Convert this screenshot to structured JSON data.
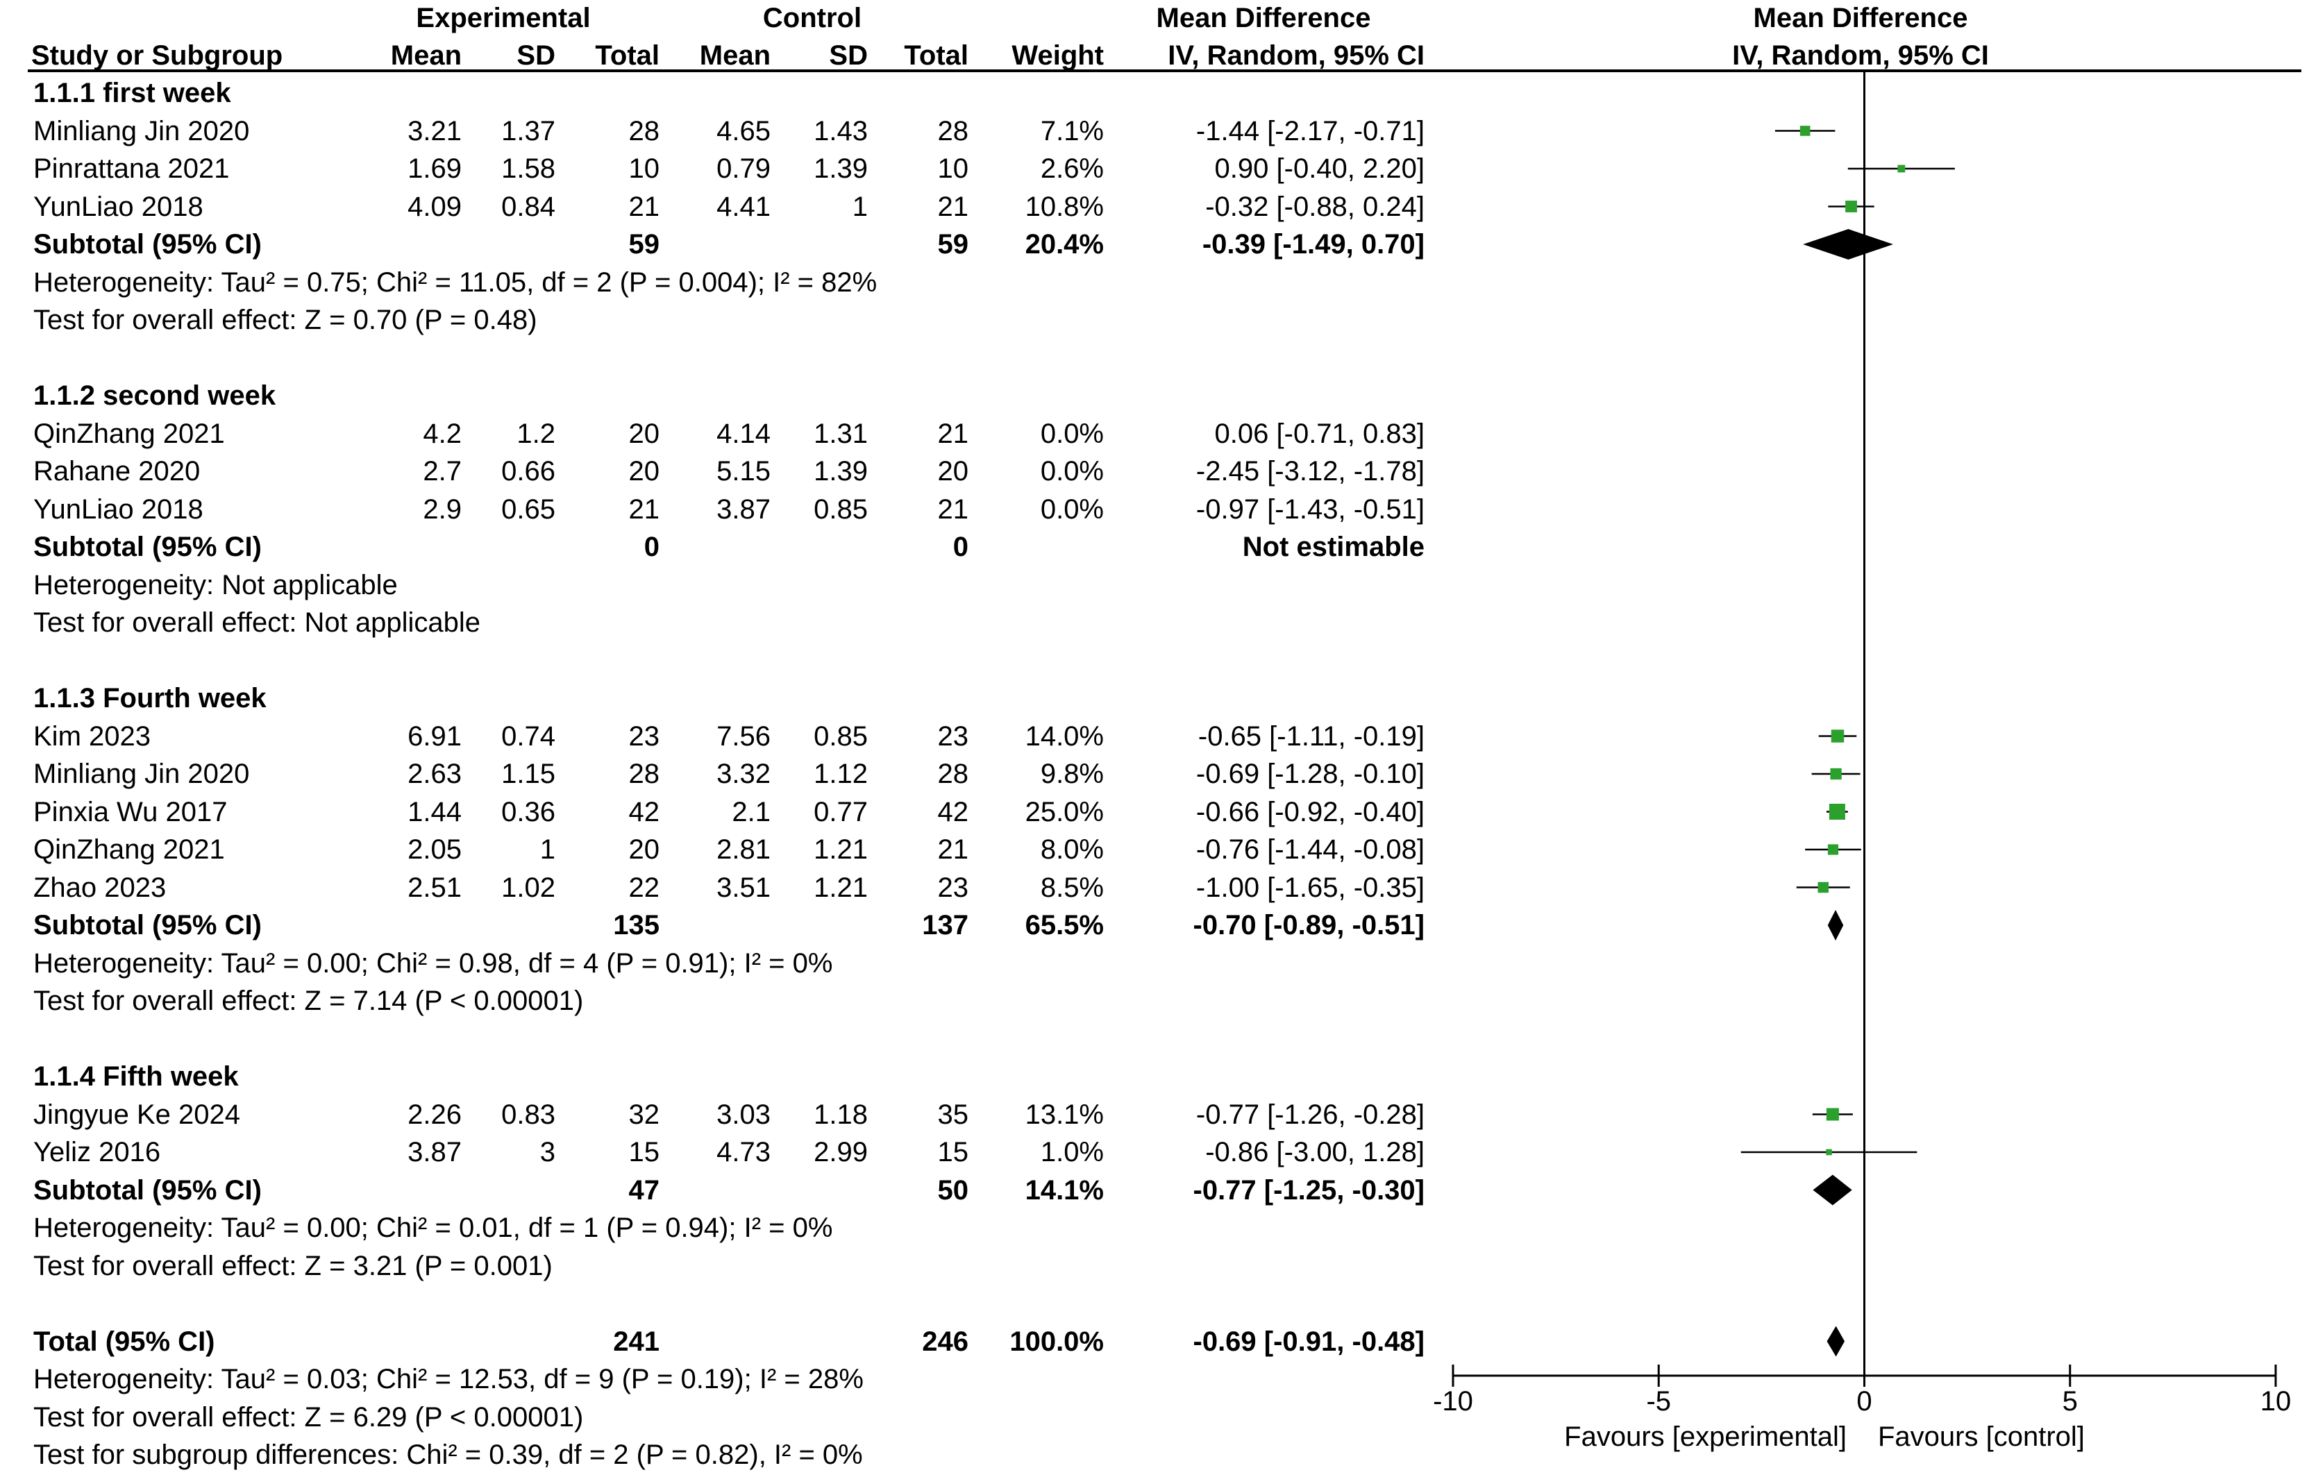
{
  "headers": {
    "experimental": "Experimental",
    "control": "Control",
    "md_table": "Mean Difference",
    "md_plot": "Mean Difference",
    "study": "Study or Subgroup",
    "exp_mean": "Mean",
    "exp_sd": "SD",
    "exp_total": "Total",
    "ctl_mean": "Mean",
    "ctl_sd": "SD",
    "ctl_total": "Total",
    "weight": "Weight",
    "md_method": "IV, Random, 95% CI",
    "plot_method": "IV, Random, 95% CI"
  },
  "rows": [
    {
      "type": "group",
      "label": "1.1.1 first week"
    },
    {
      "type": "study",
      "name": "Minliang Jin 2020",
      "em": "3.21",
      "esd": "1.37",
      "et": "28",
      "cm": "4.65",
      "csd": "1.43",
      "ct": "28",
      "w": "7.1%",
      "ci": "-1.44 [-2.17, -0.71]"
    },
    {
      "type": "study",
      "name": "Pinrattana 2021",
      "em": "1.69",
      "esd": "1.58",
      "et": "10",
      "cm": "0.79",
      "csd": "1.39",
      "ct": "10",
      "w": "2.6%",
      "ci": "0.90 [-0.40, 2.20]"
    },
    {
      "type": "study",
      "name": "YunLiao 2018",
      "em": "4.09",
      "esd": "0.84",
      "et": "21",
      "cm": "4.41",
      "csd": "1",
      "ct": "21",
      "w": "10.8%",
      "ci": "-0.32 [-0.88, 0.24]"
    },
    {
      "type": "subtotal",
      "name": "Subtotal (95% CI)",
      "et": "59",
      "ct": "59",
      "w": "20.4%",
      "ci": "-0.39 [-1.49, 0.70]"
    },
    {
      "type": "note",
      "text": "Heterogeneity: Tau² = 0.75; Chi² = 11.05, df = 2 (P = 0.004); I² = 82%"
    },
    {
      "type": "note",
      "text": "Test for overall effect: Z = 0.70 (P = 0.48)"
    },
    {
      "type": "blank"
    },
    {
      "type": "group",
      "label": "1.1.2 second week"
    },
    {
      "type": "study",
      "name": "QinZhang 2021",
      "em": "4.2",
      "esd": "1.2",
      "et": "20",
      "cm": "4.14",
      "csd": "1.31",
      "ct": "21",
      "w": "0.0%",
      "ci": "0.06 [-0.71, 0.83]"
    },
    {
      "type": "study",
      "name": "Rahane 2020",
      "em": "2.7",
      "esd": "0.66",
      "et": "20",
      "cm": "5.15",
      "csd": "1.39",
      "ct": "20",
      "w": "0.0%",
      "ci": "-2.45 [-3.12, -1.78]"
    },
    {
      "type": "study",
      "name": "YunLiao 2018",
      "em": "2.9",
      "esd": "0.65",
      "et": "21",
      "cm": "3.87",
      "csd": "0.85",
      "ct": "21",
      "w": "0.0%",
      "ci": "-0.97 [-1.43, -0.51]"
    },
    {
      "type": "subtotal",
      "name": "Subtotal (95% CI)",
      "et": "0",
      "ct": "0",
      "w": "",
      "ci": "Not estimable"
    },
    {
      "type": "note",
      "text": "Heterogeneity: Not applicable"
    },
    {
      "type": "note",
      "text": "Test for overall effect: Not applicable"
    },
    {
      "type": "blank"
    },
    {
      "type": "group",
      "label": "1.1.3 Fourth week"
    },
    {
      "type": "study",
      "name": "Kim 2023",
      "em": "6.91",
      "esd": "0.74",
      "et": "23",
      "cm": "7.56",
      "csd": "0.85",
      "ct": "23",
      "w": "14.0%",
      "ci": "-0.65 [-1.11, -0.19]"
    },
    {
      "type": "study",
      "name": "Minliang Jin 2020",
      "em": "2.63",
      "esd": "1.15",
      "et": "28",
      "cm": "3.32",
      "csd": "1.12",
      "ct": "28",
      "w": "9.8%",
      "ci": "-0.69 [-1.28, -0.10]"
    },
    {
      "type": "study",
      "name": "Pinxia Wu 2017",
      "em": "1.44",
      "esd": "0.36",
      "et": "42",
      "cm": "2.1",
      "csd": "0.77",
      "ct": "42",
      "w": "25.0%",
      "ci": "-0.66 [-0.92, -0.40]"
    },
    {
      "type": "study",
      "name": "QinZhang 2021",
      "em": "2.05",
      "esd": "1",
      "et": "20",
      "cm": "2.81",
      "csd": "1.21",
      "ct": "21",
      "w": "8.0%",
      "ci": "-0.76 [-1.44, -0.08]"
    },
    {
      "type": "study",
      "name": "Zhao 2023",
      "em": "2.51",
      "esd": "1.02",
      "et": "22",
      "cm": "3.51",
      "csd": "1.21",
      "ct": "23",
      "w": "8.5%",
      "ci": "-1.00 [-1.65, -0.35]"
    },
    {
      "type": "subtotal",
      "name": "Subtotal (95% CI)",
      "et": "135",
      "ct": "137",
      "w": "65.5%",
      "ci": "-0.70 [-0.89, -0.51]"
    },
    {
      "type": "note",
      "text": "Heterogeneity: Tau² = 0.00; Chi² = 0.98, df = 4 (P = 0.91); I² = 0%"
    },
    {
      "type": "note",
      "text": "Test for overall effect: Z = 7.14 (P < 0.00001)"
    },
    {
      "type": "blank"
    },
    {
      "type": "group",
      "label": "1.1.4 Fifth week"
    },
    {
      "type": "study",
      "name": "Jingyue Ke 2024",
      "em": "2.26",
      "esd": "0.83",
      "et": "32",
      "cm": "3.03",
      "csd": "1.18",
      "ct": "35",
      "w": "13.1%",
      "ci": "-0.77 [-1.26, -0.28]"
    },
    {
      "type": "study",
      "name": "Yeliz 2016",
      "em": "3.87",
      "esd": "3",
      "et": "15",
      "cm": "4.73",
      "csd": "2.99",
      "ct": "15",
      "w": "1.0%",
      "ci": "-0.86 [-3.00, 1.28]"
    },
    {
      "type": "subtotal",
      "name": "Subtotal (95% CI)",
      "et": "47",
      "ct": "50",
      "w": "14.1%",
      "ci": "-0.77 [-1.25, -0.30]"
    },
    {
      "type": "note",
      "text": "Heterogeneity: Tau² = 0.00; Chi² = 0.01, df = 1 (P = 0.94); I² = 0%"
    },
    {
      "type": "note",
      "text": "Test for overall effect: Z = 3.21 (P = 0.001)"
    },
    {
      "type": "blank"
    },
    {
      "type": "total",
      "name": "Total (95% CI)",
      "et": "241",
      "ct": "246",
      "w": "100.0%",
      "ci": "-0.69 [-0.91, -0.48]"
    },
    {
      "type": "note",
      "text": "Heterogeneity: Tau² = 0.03; Chi² = 12.53, df = 9 (P = 0.19); I² = 28%"
    },
    {
      "type": "note",
      "text": "Test for overall effect: Z = 6.29 (P < 0.00001)"
    },
    {
      "type": "note",
      "text": "Test for subgroup differences: Chi² = 0.39, df = 2 (P = 0.82), I² = 0%"
    }
  ],
  "chart_data": {
    "type": "forest",
    "xlim": [
      -10,
      10
    ],
    "ticks": [
      -10,
      -5,
      0,
      5,
      10
    ],
    "tick_labels": [
      "-10",
      "-5",
      "0",
      "5",
      "10"
    ],
    "favours_left": "Favours [experimental]",
    "favours_right": "Favours [control]",
    "studies": [
      {
        "row": 1,
        "md": -1.44,
        "lo": -2.17,
        "hi": -0.71,
        "weight": 7.1
      },
      {
        "row": 2,
        "md": 0.9,
        "lo": -0.4,
        "hi": 2.2,
        "weight": 2.6
      },
      {
        "row": 3,
        "md": -0.32,
        "lo": -0.88,
        "hi": 0.24,
        "weight": 10.8
      },
      {
        "row": 17,
        "md": -0.65,
        "lo": -1.11,
        "hi": -0.19,
        "weight": 14.0
      },
      {
        "row": 18,
        "md": -0.69,
        "lo": -1.28,
        "hi": -0.1,
        "weight": 9.8
      },
      {
        "row": 19,
        "md": -0.66,
        "lo": -0.92,
        "hi": -0.4,
        "weight": 25.0
      },
      {
        "row": 20,
        "md": -0.76,
        "lo": -1.44,
        "hi": -0.08,
        "weight": 8.0
      },
      {
        "row": 21,
        "md": -1.0,
        "lo": -1.65,
        "hi": -0.35,
        "weight": 8.5
      },
      {
        "row": 27,
        "md": -0.77,
        "lo": -1.26,
        "hi": -0.28,
        "weight": 13.1
      },
      {
        "row": 28,
        "md": -0.86,
        "lo": -3.0,
        "hi": 1.28,
        "weight": 1.0
      }
    ],
    "diamonds": [
      {
        "row": 4,
        "md": -0.39,
        "lo": -1.49,
        "hi": 0.7
      },
      {
        "row": 22,
        "md": -0.7,
        "lo": -0.89,
        "hi": -0.51
      },
      {
        "row": 29,
        "md": -0.77,
        "lo": -1.25,
        "hi": -0.3
      },
      {
        "row": 33,
        "md": -0.69,
        "lo": -0.91,
        "hi": -0.48
      }
    ],
    "colors": {
      "marker": "#2ca02c",
      "diamond": "#000000"
    }
  }
}
